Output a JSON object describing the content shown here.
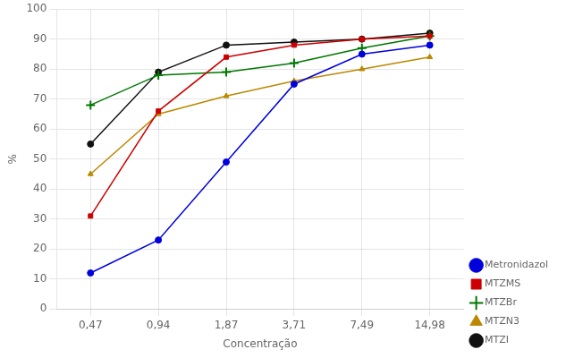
{
  "chart_data": {
    "type": "line",
    "xlabel": "Concentração",
    "ylabel": "%",
    "categories": [
      "0,47",
      "0,94",
      "1,87",
      "3,71",
      "7,49",
      "14,98"
    ],
    "series": [
      {
        "name": "Metronidazol",
        "color": "#0000dd",
        "marker": "circle",
        "values": [
          12,
          23,
          49,
          75,
          85,
          88
        ]
      },
      {
        "name": "MTZMS",
        "color": "#cc0000",
        "marker": "square",
        "values": [
          31,
          66,
          84,
          88,
          90,
          91
        ]
      },
      {
        "name": "MTZBr",
        "color": "#007700",
        "marker": "plus",
        "values": [
          68,
          78,
          79,
          82,
          87,
          91
        ]
      },
      {
        "name": "MTZN3",
        "color": "#bb8800",
        "marker": "triangle",
        "values": [
          45,
          65,
          71,
          76,
          80,
          84
        ]
      },
      {
        "name": "MTZI",
        "color": "#111111",
        "marker": "circle",
        "values": [
          55,
          79,
          88,
          89,
          90,
          92
        ]
      }
    ],
    "ylim": [
      0,
      100
    ],
    "yticks": [
      0,
      10,
      20,
      30,
      40,
      50,
      60,
      70,
      80,
      90,
      100
    ],
    "grid": true,
    "legend": "lower right"
  }
}
